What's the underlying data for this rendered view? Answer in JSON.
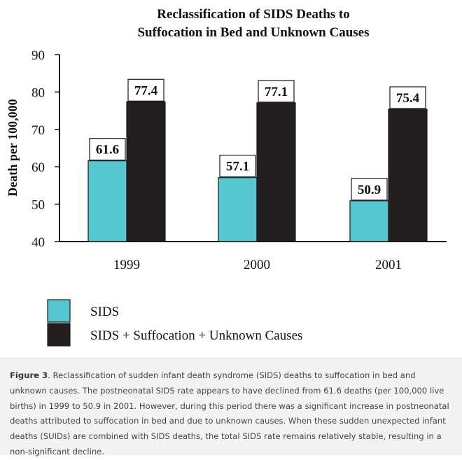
{
  "chart_data": {
    "type": "bar",
    "title": [
      "Reclassification of SIDS Deaths to",
      "Suffocation in Bed and Unknown Causes"
    ],
    "ylabel": "Death per 100,000",
    "xlabel": "",
    "ylim": [
      40,
      90
    ],
    "yticks": [
      40,
      50,
      60,
      70,
      80,
      90
    ],
    "categories": [
      "1999",
      "2000",
      "2001"
    ],
    "series": [
      {
        "name": "SIDS",
        "color": "#56c6d0",
        "values": [
          61.6,
          57.1,
          50.9
        ],
        "labels": [
          "61.6",
          "57.1",
          "50.9"
        ]
      },
      {
        "name": "SIDS + Suffocation + Unknown Causes",
        "color": "#221e1f",
        "values": [
          77.4,
          77.1,
          75.4
        ],
        "labels": [
          "77.4",
          "77.1",
          "75.4"
        ]
      }
    ],
    "grid": false,
    "legend": "bottom-left"
  },
  "caption": {
    "label": "Figure 3",
    "text": ". Reclassification of sudden infant death syndrome (SIDS) deaths to suffocation in bed and unknown causes. The postneonatal SIDS rate appears to have declined from 61.6 deaths (per 100,000 live births) in 1999 to 50.9 in 2001. However, during this period there was a significant increase in postneonatal deaths attributed to suffocation in bed and due to unknown causes. When these sudden unexpected infant deaths (SUIDs) are combined with SIDS deaths, the total SIDS rate remains relatively stable, resulting in a non-significant decline."
  }
}
